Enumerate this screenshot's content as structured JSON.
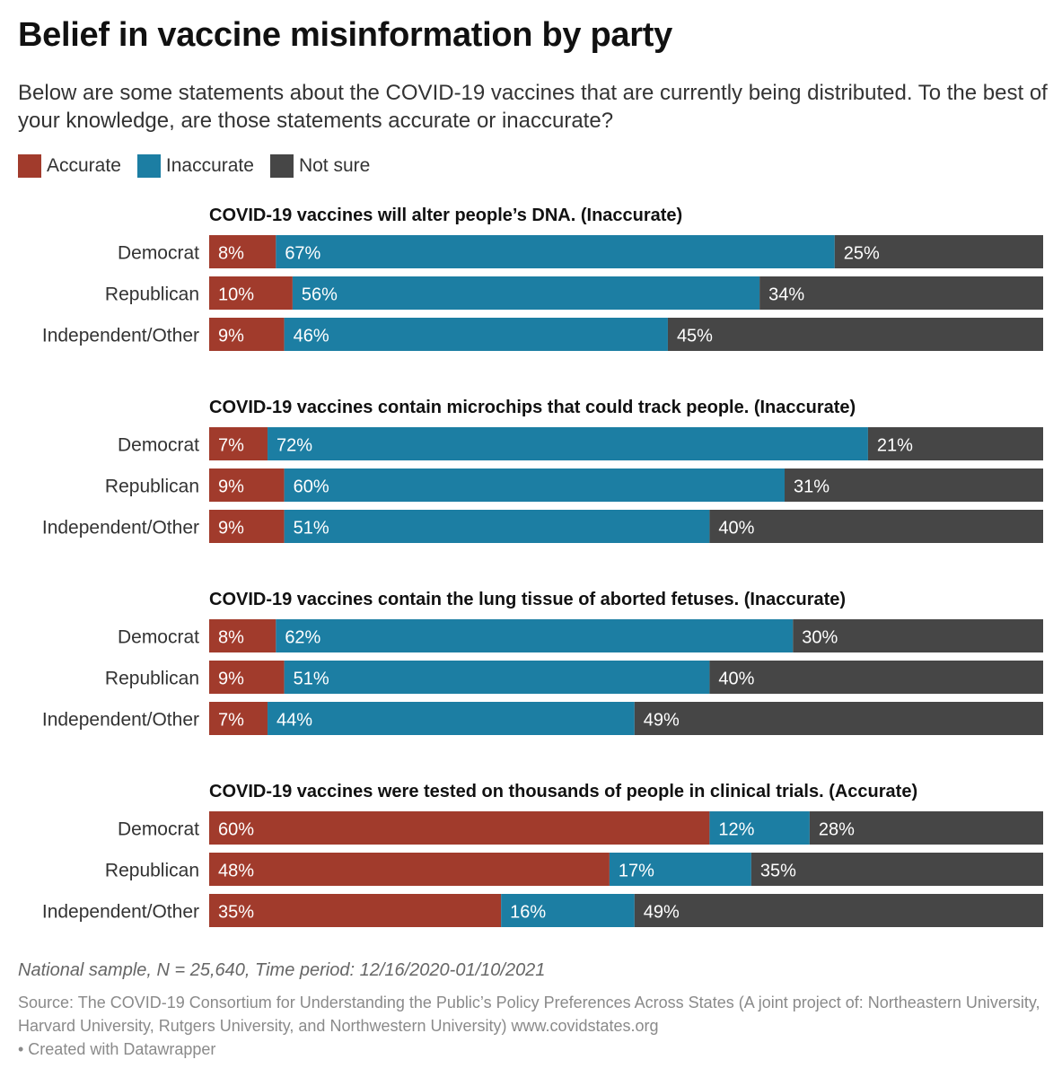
{
  "title": "Belief in vaccine misinformation by party",
  "subtitle": "Below are some statements about the COVID-19 vaccines that are currently being distributed. To the best of your knowledge, are those statements accurate or inaccurate?",
  "legend": [
    {
      "label": "Accurate",
      "color": "#a13b2c"
    },
    {
      "label": "Inaccurate",
      "color": "#1c7ea3"
    },
    {
      "label": "Not sure",
      "color": "#464646"
    }
  ],
  "note": "National sample, N = 25,640, Time period: 12/16/2020-01/10/2021",
  "source": "Source: The COVID-19 Consortium for Understanding the Public’s Policy Preferences Across States (A joint project of: Northeastern University, Harvard University, Rutgers University, and Northwestern University) www.covidstates.org",
  "credit": "• Created with Datawrapper",
  "chart_data": {
    "type": "bar",
    "orientation": "horizontal",
    "stacked": true,
    "xlim": [
      0,
      100
    ],
    "unit": "%",
    "series_names": [
      "Accurate",
      "Inaccurate",
      "Not sure"
    ],
    "colors": [
      "#a13b2c",
      "#1c7ea3",
      "#464646"
    ],
    "panels": [
      {
        "title": "COVID-19 vaccines will alter people’s DNA. (Inaccurate)",
        "rows": [
          {
            "label": "Democrat",
            "values": [
              8,
              67,
              25
            ]
          },
          {
            "label": "Republican",
            "values": [
              10,
              56,
              34
            ]
          },
          {
            "label": "Independent/Other",
            "values": [
              9,
              46,
              45
            ]
          }
        ]
      },
      {
        "title": "COVID-19 vaccines contain microchips that could track people. (Inaccurate)",
        "rows": [
          {
            "label": "Democrat",
            "values": [
              7,
              72,
              21
            ]
          },
          {
            "label": "Republican",
            "values": [
              9,
              60,
              31
            ]
          },
          {
            "label": "Independent/Other",
            "values": [
              9,
              51,
              40
            ]
          }
        ]
      },
      {
        "title": "COVID-19 vaccines contain the lung tissue of aborted fetuses. (Inaccurate)",
        "rows": [
          {
            "label": "Democrat",
            "values": [
              8,
              62,
              30
            ]
          },
          {
            "label": "Republican",
            "values": [
              9,
              51,
              40
            ]
          },
          {
            "label": "Independent/Other",
            "values": [
              7,
              44,
              49
            ]
          }
        ]
      },
      {
        "title": "COVID-19 vaccines were tested on thousands of people in clinical trials. (Accurate)",
        "rows": [
          {
            "label": "Democrat",
            "values": [
              60,
              12,
              28
            ]
          },
          {
            "label": "Republican",
            "values": [
              48,
              17,
              35
            ]
          },
          {
            "label": "Independent/Other",
            "values": [
              35,
              16,
              49
            ]
          }
        ]
      }
    ]
  }
}
